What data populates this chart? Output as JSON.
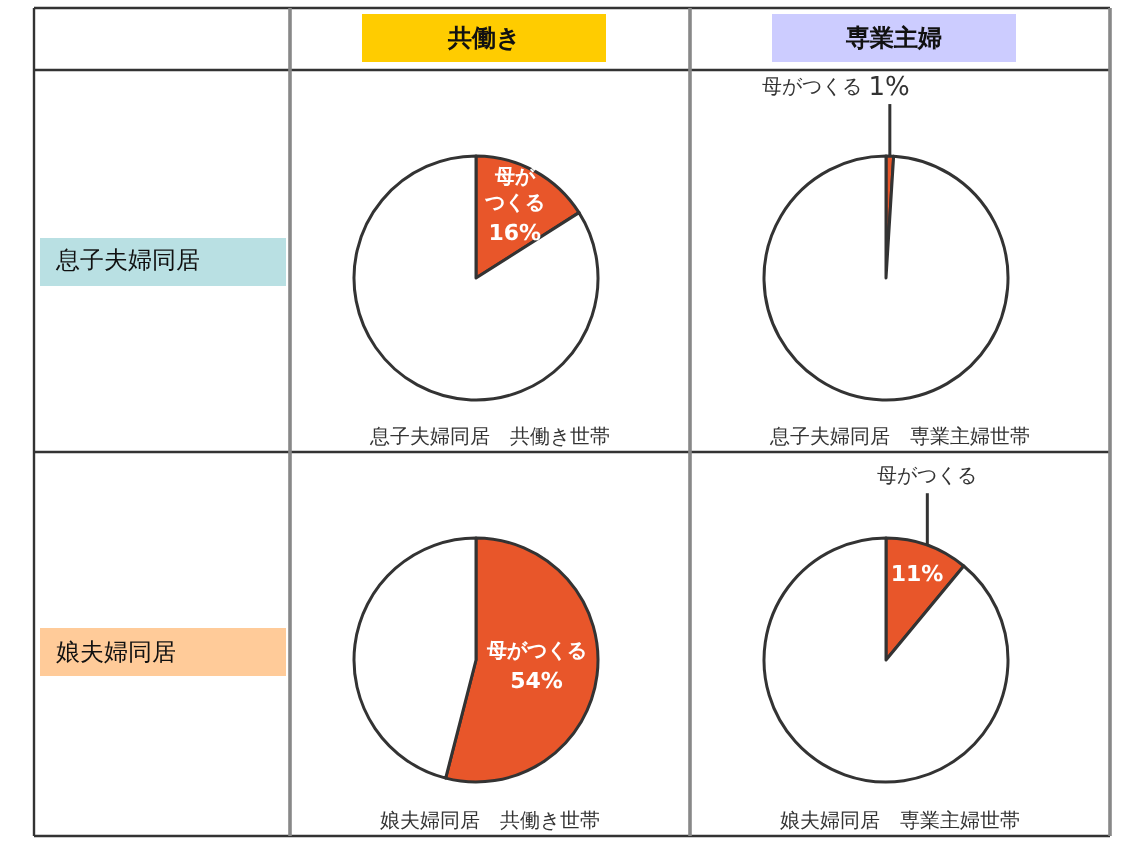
{
  "chart_data": [
    {
      "type": "other",
      "annotations": [
        "共働き",
        "専業主婦",
        "息子夫婦同居",
        "娘夫婦同居"
      ]
    },
    {
      "type": "pie",
      "title": "息子夫婦同居　共働き世帯",
      "categories": [
        "母がつくる",
        null
      ],
      "values": [
        16,
        84
      ],
      "colors": [
        "#e8562a",
        "#ffffff"
      ],
      "value_labels": [
        "16%",
        null
      ]
    },
    {
      "type": "pie",
      "title": "息子夫婦同居　専業主婦世帯",
      "categories": [
        "母がつくる",
        null
      ],
      "values": [
        1,
        99
      ],
      "colors": [
        "#e8562a",
        "#ffffff"
      ],
      "value_labels": [
        "1%",
        null
      ]
    },
    {
      "type": "pie",
      "title": "娘夫婦同居　共働き世帯",
      "categories": [
        "母がつくる",
        null
      ],
      "values": [
        54,
        46
      ],
      "colors": [
        "#e8562a",
        "#ffffff"
      ],
      "value_labels": [
        "54%",
        null
      ]
    },
    {
      "type": "pie",
      "title": "娘夫婦同居　専業主婦世帯",
      "categories": [
        "母がつくる",
        null
      ],
      "values": [
        11,
        89
      ],
      "colors": [
        "#e8562a",
        "#ffffff"
      ],
      "value_labels": [
        "11%",
        null
      ]
    }
  ]
}
